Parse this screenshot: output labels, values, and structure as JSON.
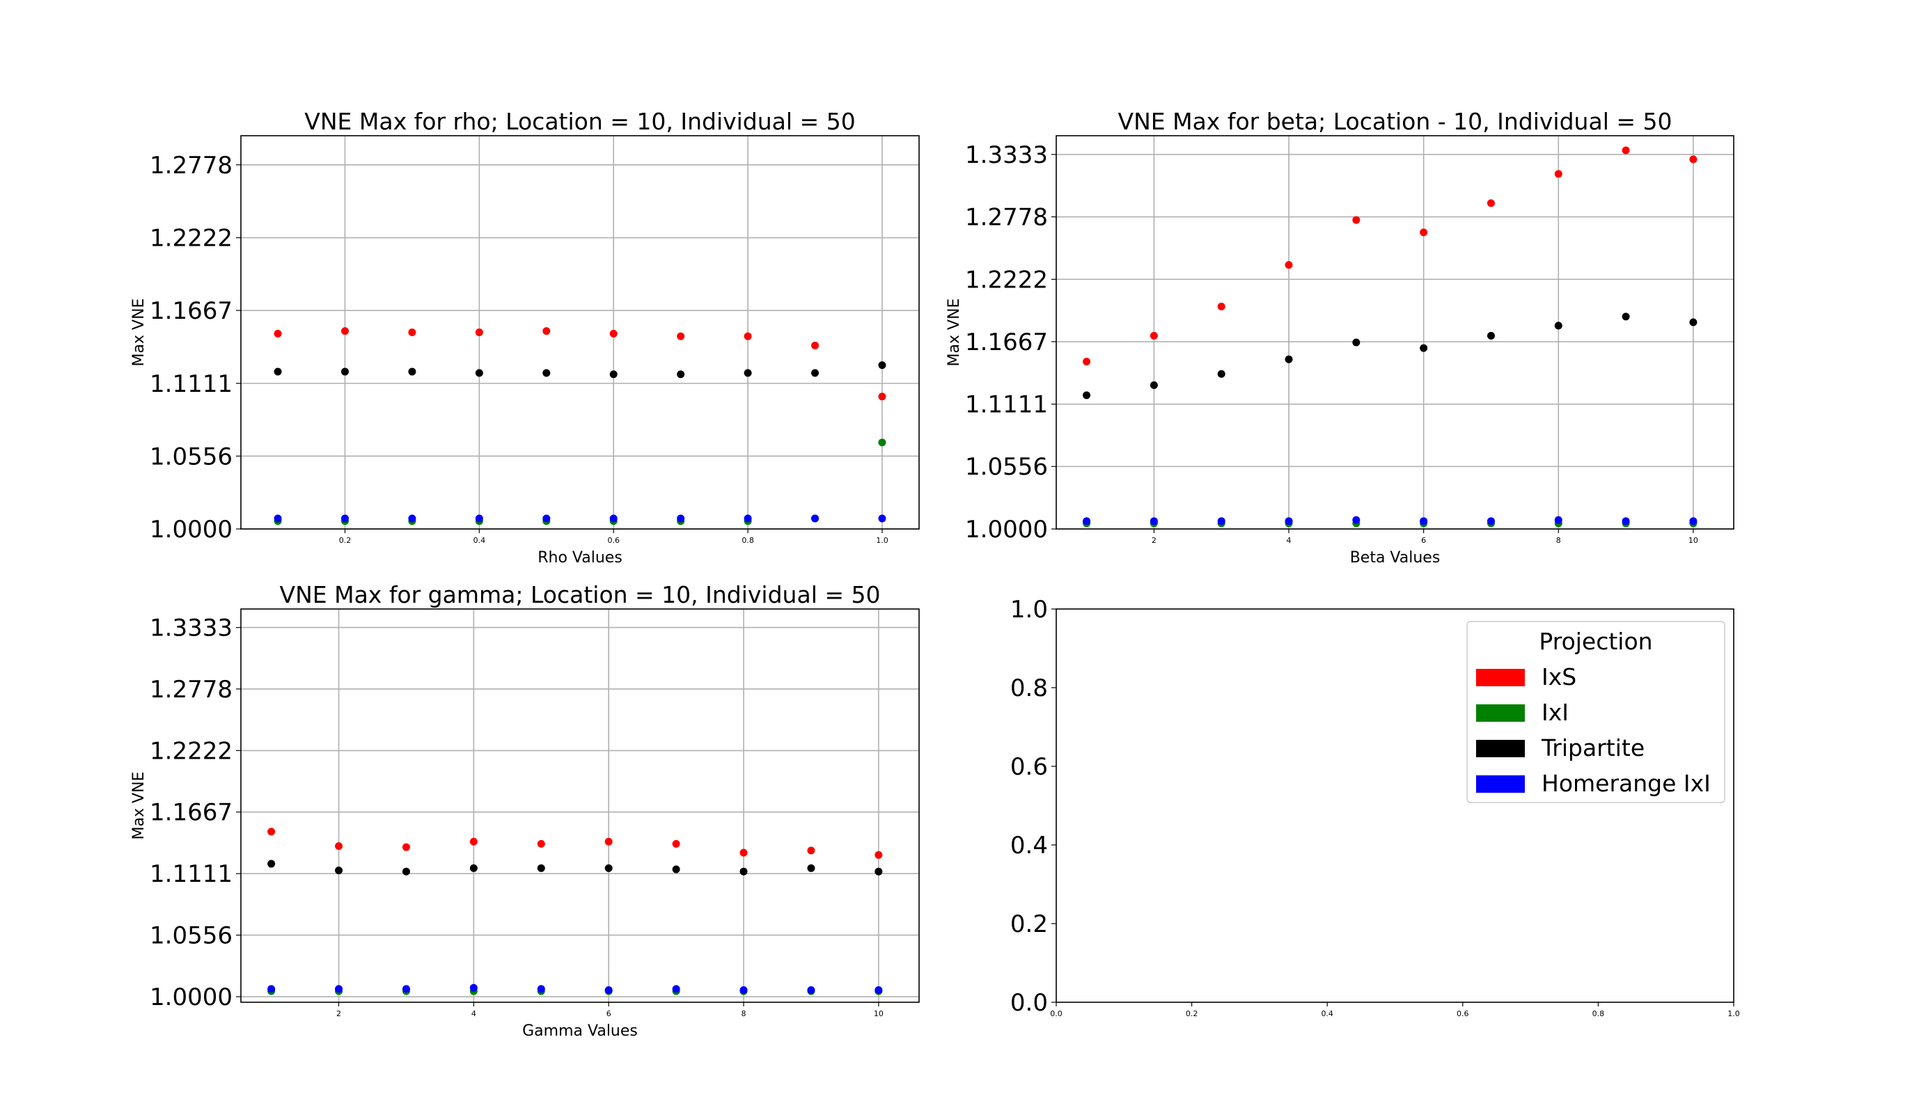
{
  "chart_data": [
    {
      "type": "scatter",
      "title": "VNE Max for rho; Location = 10, Individual = 50",
      "xlabel": "Rho Values",
      "ylabel": "Max VNE",
      "xlim": [
        0.045,
        1.055
      ],
      "ylim": [
        1.0,
        1.3
      ],
      "xticks": [
        0.2,
        0.4,
        0.6,
        0.8,
        1.0
      ],
      "xtick_labels": [
        "0.2",
        "0.4",
        "0.6",
        "0.8",
        "1.0"
      ],
      "yticks": [
        1.0,
        1.0556,
        1.1111,
        1.1667,
        1.2222,
        1.2778
      ],
      "ytick_labels": [
        "1.0000",
        "1.0556",
        "1.1111",
        "1.1667",
        "1.2222",
        "1.2778"
      ],
      "grid": true,
      "x": [
        0.1,
        0.2,
        0.3,
        0.4,
        0.5,
        0.6,
        0.7,
        0.8,
        0.9,
        1.0
      ],
      "series": [
        {
          "name": "IxS",
          "color": "#ff0000",
          "values": [
            1.149,
            1.151,
            1.15,
            1.15,
            1.151,
            1.149,
            1.147,
            1.147,
            1.14,
            1.101
          ]
        },
        {
          "name": "IxI",
          "color": "#008000",
          "values": [
            1.006,
            1.006,
            1.006,
            1.006,
            1.006,
            1.006,
            1.006,
            1.006,
            1.008,
            1.066
          ]
        },
        {
          "name": "Tripartite",
          "color": "#000000",
          "values": [
            1.12,
            1.12,
            1.12,
            1.119,
            1.119,
            1.118,
            1.118,
            1.119,
            1.119,
            1.125
          ]
        },
        {
          "name": "Homerange IxI",
          "color": "#0000ff",
          "values": [
            1.008,
            1.008,
            1.008,
            1.008,
            1.008,
            1.008,
            1.008,
            1.008,
            1.008,
            1.008
          ]
        }
      ]
    },
    {
      "type": "scatter",
      "title": "VNE Max for beta; Location - 10, Individual = 50",
      "xlabel": "Beta Values",
      "ylabel": "Max VNE",
      "xlim": [
        0.55,
        10.6
      ],
      "ylim": [
        1.0,
        1.35
      ],
      "xticks": [
        2,
        4,
        6,
        8,
        10
      ],
      "xtick_labels": [
        "2",
        "4",
        "6",
        "8",
        "10"
      ],
      "yticks": [
        1.0,
        1.0556,
        1.1111,
        1.1667,
        1.2222,
        1.2778,
        1.3333
      ],
      "ytick_labels": [
        "1.0000",
        "1.0556",
        "1.1111",
        "1.1667",
        "1.2222",
        "1.2778",
        "1.3333"
      ],
      "grid": true,
      "x": [
        1,
        2,
        3,
        4,
        5,
        6,
        7,
        8,
        9,
        10
      ],
      "series": [
        {
          "name": "IxS",
          "color": "#ff0000",
          "values": [
            1.149,
            1.172,
            1.198,
            1.235,
            1.275,
            1.264,
            1.29,
            1.316,
            1.337,
            1.329
          ]
        },
        {
          "name": "IxI",
          "color": "#008000",
          "values": [
            1.005,
            1.005,
            1.005,
            1.005,
            1.005,
            1.005,
            1.005,
            1.005,
            1.005,
            1.005
          ]
        },
        {
          "name": "Tripartite",
          "color": "#000000",
          "values": [
            1.119,
            1.128,
            1.138,
            1.151,
            1.166,
            1.161,
            1.172,
            1.181,
            1.189,
            1.184
          ]
        },
        {
          "name": "Homerange IxI",
          "color": "#0000ff",
          "values": [
            1.007,
            1.007,
            1.007,
            1.007,
            1.008,
            1.007,
            1.007,
            1.008,
            1.007,
            1.007
          ]
        }
      ]
    },
    {
      "type": "scatter",
      "title": "VNE Max for gamma; Location = 10, Individual = 50",
      "xlabel": "Gamma Values",
      "ylabel": "Max VNE",
      "xlim": [
        0.55,
        10.6
      ],
      "ylim": [
        0.995,
        1.35
      ],
      "xticks": [
        2,
        4,
        6,
        8,
        10
      ],
      "xtick_labels": [
        "2",
        "4",
        "6",
        "8",
        "10"
      ],
      "yticks": [
        1.0,
        1.0556,
        1.1111,
        1.1667,
        1.2222,
        1.2778,
        1.3333
      ],
      "ytick_labels": [
        "1.0000",
        "1.0556",
        "1.1111",
        "1.1667",
        "1.2222",
        "1.2778",
        "1.3333"
      ],
      "grid": true,
      "x": [
        1,
        2,
        3,
        4,
        5,
        6,
        7,
        8,
        9,
        10
      ],
      "series": [
        {
          "name": "IxS",
          "color": "#ff0000",
          "values": [
            1.149,
            1.136,
            1.135,
            1.14,
            1.138,
            1.14,
            1.138,
            1.13,
            1.132,
            1.128
          ]
        },
        {
          "name": "IxI",
          "color": "#008000",
          "values": [
            1.005,
            1.005,
            1.005,
            1.005,
            1.005,
            1.005,
            1.005,
            1.005,
            1.005,
            1.005
          ]
        },
        {
          "name": "Tripartite",
          "color": "#000000",
          "values": [
            1.12,
            1.114,
            1.113,
            1.116,
            1.116,
            1.116,
            1.115,
            1.113,
            1.116,
            1.113
          ]
        },
        {
          "name": "Homerange IxI",
          "color": "#0000ff",
          "values": [
            1.007,
            1.007,
            1.007,
            1.008,
            1.007,
            1.006,
            1.007,
            1.006,
            1.006,
            1.006
          ]
        }
      ]
    },
    {
      "type": "scatter",
      "title": "",
      "xlabel": "",
      "ylabel": "",
      "xlim": [
        0.0,
        1.0
      ],
      "ylim": [
        0.0,
        1.0
      ],
      "xticks": [
        0.0,
        0.2,
        0.4,
        0.6,
        0.8,
        1.0
      ],
      "xtick_labels": [
        "0.0",
        "0.2",
        "0.4",
        "0.6",
        "0.8",
        "1.0"
      ],
      "yticks": [
        0.0,
        0.2,
        0.4,
        0.6,
        0.8,
        1.0
      ],
      "ytick_labels": [
        "0.0",
        "0.2",
        "0.4",
        "0.6",
        "0.8",
        "1.0"
      ],
      "grid": false,
      "x": [],
      "series": [],
      "legend": {
        "title": "Projection",
        "placement": "upper-right",
        "entries": [
          {
            "label": "IxS",
            "color": "#ff0000"
          },
          {
            "label": "IxI",
            "color": "#008000"
          },
          {
            "label": "Tripartite",
            "color": "#000000"
          },
          {
            "label": "Homerange IxI",
            "color": "#0000ff"
          }
        ]
      }
    }
  ]
}
